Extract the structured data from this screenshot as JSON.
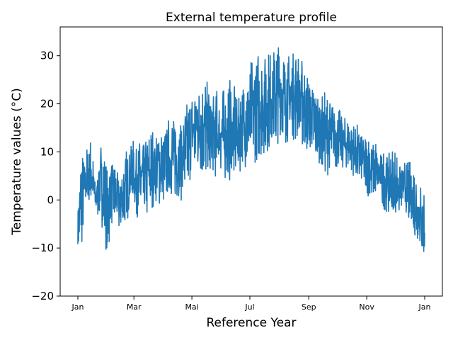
{
  "chart_data": {
    "type": "line",
    "title": "External temperature profile",
    "xlabel": "Reference Year",
    "ylabel": "Temperature values (°C)",
    "x_unit": "month",
    "xlim": [
      "Jan",
      "Jan (next year)"
    ],
    "ylim": [
      -20,
      36
    ],
    "y_ticks": [
      -20,
      -10,
      0,
      10,
      20,
      30
    ],
    "x_ticks": [
      "Jan",
      "Mar",
      "Mai",
      "Jul",
      "Sep",
      "Nov",
      "Jan"
    ],
    "grid": false,
    "legend": "none",
    "series": [
      {
        "color": "#1f77b4",
        "x": [
          "Jan 1",
          "Jan 5",
          "Jan 10",
          "Jan 15",
          "Jan 20",
          "Jan 25",
          "Feb 1",
          "Feb 5",
          "Feb 10",
          "Feb 15",
          "Feb 20",
          "Feb 25",
          "Mar 1",
          "Mar 10",
          "Mar 20",
          "Apr 1",
          "Apr 10",
          "Apr 20",
          "May 1",
          "May 10",
          "May 20",
          "Jun 1",
          "Jun 10",
          "Jun 20",
          "Jul 1",
          "Jul 10",
          "Jul 20",
          "Aug 1",
          "Aug 10",
          "Aug 20",
          "Sep 1",
          "Sep 10",
          "Sep 20",
          "Oct 1",
          "Oct 10",
          "Oct 20",
          "Nov 1",
          "Nov 10",
          "Nov 20",
          "Dec 1",
          "Dec 10",
          "Dec 20",
          "Dec 31"
        ],
        "y_low": [
          -11,
          -12,
          -2,
          -2,
          -3,
          -6,
          -14,
          -6,
          -5,
          -8,
          -6,
          -3,
          -4,
          -5,
          -4,
          -2,
          -1,
          0,
          5,
          6,
          4,
          6,
          3,
          6,
          6,
          9,
          10,
          12,
          12,
          13,
          10,
          8,
          5,
          6,
          7,
          4,
          1,
          0,
          -2,
          -4,
          -2,
          -7,
          -12
        ],
        "y_high": [
          -3,
          9,
          11,
          12,
          2,
          11,
          6,
          8,
          6,
          5,
          9,
          14,
          13,
          11,
          14,
          14,
          18,
          17,
          23,
          27,
          24,
          23,
          25,
          22,
          28,
          32,
          31,
          33,
          30,
          32,
          27,
          22,
          23,
          20,
          17,
          16,
          14,
          13,
          11,
          11,
          9,
          8,
          3
        ],
        "y_mean": [
          -6,
          0,
          4,
          6,
          0,
          4,
          -3,
          2,
          1,
          -1,
          2,
          6,
          5,
          4,
          6,
          7,
          9,
          8,
          14,
          16,
          14,
          14,
          14,
          14,
          17,
          20,
          20,
          22,
          21,
          22,
          18,
          15,
          14,
          13,
          12,
          10,
          7,
          6,
          4,
          3,
          3,
          0,
          -5
        ]
      }
    ]
  }
}
